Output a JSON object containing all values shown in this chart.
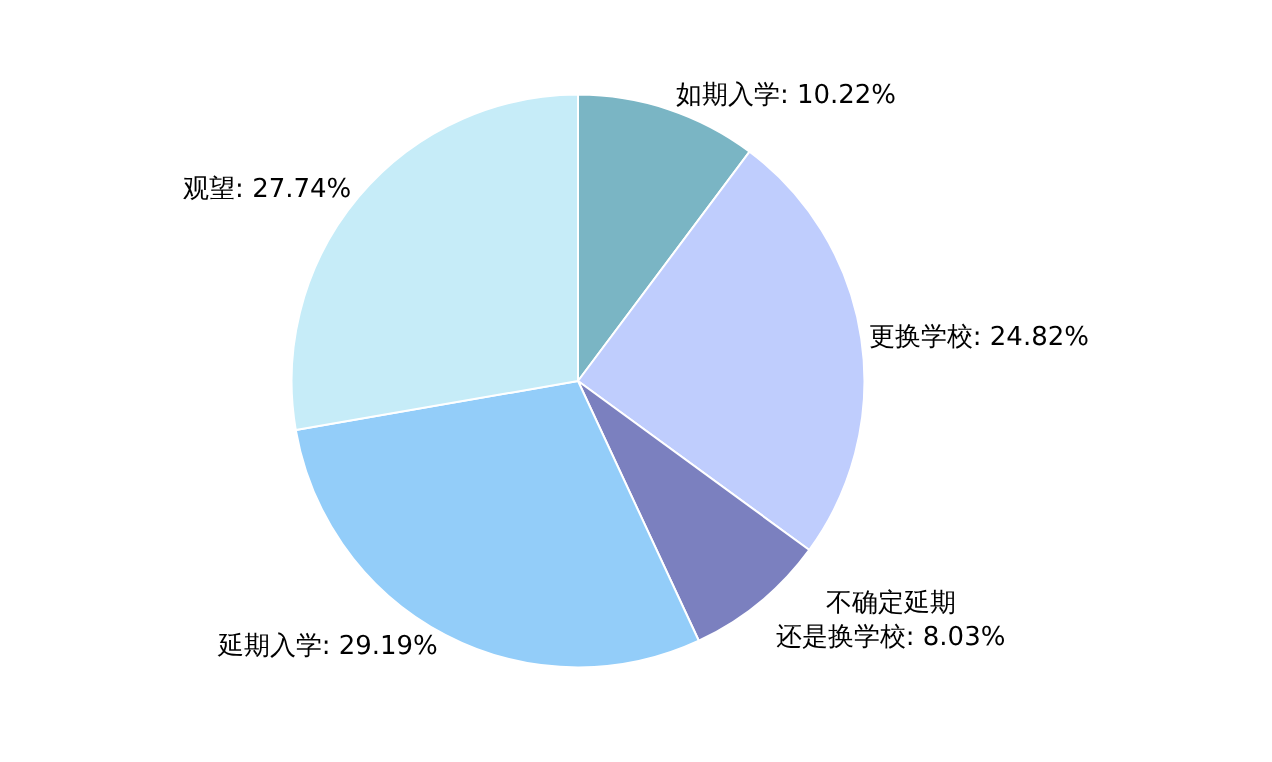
{
  "chart_data": {
    "type": "pie",
    "categories": [
      "如期入学",
      "更换学校",
      "不确定延期还是换学校",
      "延期入学",
      "观望"
    ],
    "values": [
      10.22,
      24.82,
      8.03,
      29.19,
      27.74
    ],
    "value_labels": [
      "10.22%",
      "24.82%",
      "8.03%",
      "29.19%",
      "27.74%"
    ],
    "colors": [
      "#7ab5c4",
      "#bfcdfd",
      "#7b80bf",
      "#93cdf9",
      "#c6ecf8"
    ],
    "legend": false
  }
}
